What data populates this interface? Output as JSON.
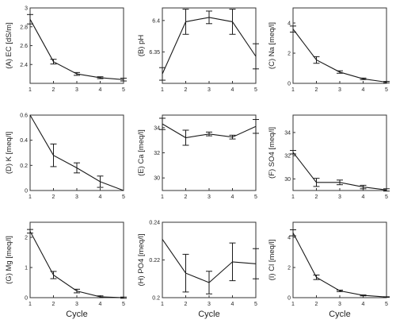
{
  "chart_data": [
    {
      "type": "line",
      "panel_letter": "(A)",
      "ylabel": "EC [dS/m]",
      "x": [
        1,
        2,
        3,
        4,
        5
      ],
      "values": [
        2.88,
        2.43,
        2.3,
        2.26,
        2.24
      ],
      "err": [
        0.05,
        0.025,
        0.015,
        0.01,
        0.015
      ],
      "ylim": [
        2.2,
        3.0
      ],
      "yticks": [
        2.4,
        2.6,
        2.8,
        3.0
      ],
      "xticks": [
        1,
        2,
        3,
        4,
        5
      ]
    },
    {
      "type": "line",
      "panel_letter": "(B)",
      "ylabel": "pH",
      "x": [
        1,
        2,
        3,
        4,
        5
      ],
      "values": [
        6.315,
        6.398,
        6.405,
        6.398,
        6.343
      ],
      "err": [
        0.01,
        0.02,
        0.01,
        0.02,
        0.02
      ],
      "ylim": [
        6.3,
        6.42
      ],
      "yticks": [
        6.35,
        6.4
      ],
      "xticks": [
        1,
        2,
        3,
        4,
        5
      ]
    },
    {
      "type": "line",
      "panel_letter": "(C)",
      "ylabel": "Na [meq/l]",
      "x": [
        1,
        2,
        3,
        4,
        5
      ],
      "values": [
        3.6,
        1.55,
        0.75,
        0.3,
        0.08
      ],
      "err": [
        0.2,
        0.22,
        0.08,
        0.05,
        0.05
      ],
      "ylim": [
        0,
        5
      ],
      "yticks": [
        0,
        2,
        4
      ],
      "xticks": [
        1,
        2,
        3,
        4,
        5
      ]
    },
    {
      "type": "line",
      "panel_letter": "(D)",
      "ylabel": "K [meq/l]",
      "x": [
        1,
        2,
        3,
        4,
        5
      ],
      "values": [
        0.6,
        0.28,
        0.18,
        0.07,
        0.0
      ],
      "err": [
        0.0,
        0.09,
        0.04,
        0.045,
        0.0
      ],
      "ylim": [
        0,
        0.6
      ],
      "yticks": [
        0,
        0.2,
        0.4,
        0.6
      ],
      "xticks": [
        1,
        2,
        3,
        4,
        5
      ]
    },
    {
      "type": "line",
      "panel_letter": "(E)",
      "ylabel": "Ca [meq/l]",
      "x": [
        1,
        2,
        3,
        4,
        5
      ],
      "values": [
        34.3,
        33.2,
        33.5,
        33.25,
        34.1
      ],
      "err": [
        0.45,
        0.6,
        0.15,
        0.15,
        0.55
      ],
      "ylim": [
        29,
        35
      ],
      "yticks": [
        30,
        32,
        34
      ],
      "xticks": [
        1,
        2,
        3,
        4,
        5
      ]
    },
    {
      "type": "line",
      "panel_letter": "(F)",
      "ylabel": "SO4 [meq/l]",
      "x": [
        1,
        2,
        3,
        4,
        5
      ],
      "values": [
        32.3,
        29.7,
        29.7,
        29.3,
        29.05
      ],
      "err": [
        0.15,
        0.35,
        0.2,
        0.15,
        0.1
      ],
      "ylim": [
        29,
        35.5
      ],
      "yticks": [
        30,
        32,
        34
      ],
      "xticks": [
        1,
        2,
        3,
        4,
        5
      ]
    },
    {
      "type": "line",
      "panel_letter": "(G)",
      "ylabel": "Mg [meq/l]",
      "x": [
        1,
        2,
        3,
        4,
        5
      ],
      "values": [
        2.2,
        0.75,
        0.22,
        0.03,
        0.0
      ],
      "err": [
        0.06,
        0.12,
        0.06,
        0.03,
        0.02
      ],
      "ylim": [
        0,
        2.5
      ],
      "yticks": [
        0,
        1,
        2
      ],
      "xticks": [
        1,
        2,
        3,
        4,
        5
      ]
    },
    {
      "type": "line",
      "panel_letter": "(H)",
      "ylabel": "PO4 [meq/l]",
      "x": [
        1,
        2,
        3,
        4,
        5
      ],
      "values": [
        0.231,
        0.213,
        0.208,
        0.219,
        0.218
      ],
      "err": [
        0.0,
        0.01,
        0.006,
        0.01,
        0.008
      ],
      "ylim": [
        0.2,
        0.24
      ],
      "yticks": [
        0.2,
        0.22,
        0.24
      ],
      "xticks": [
        1,
        2,
        3,
        4,
        5
      ]
    },
    {
      "type": "line",
      "panel_letter": "(I)",
      "ylabel": "Cl [meq/l]",
      "x": [
        1,
        2,
        3,
        4,
        5
      ],
      "values": [
        4.3,
        1.35,
        0.45,
        0.15,
        0.04
      ],
      "err": [
        0.2,
        0.15,
        0.05,
        0.03,
        0.02
      ],
      "ylim": [
        0,
        5
      ],
      "yticks": [
        0,
        2,
        4
      ],
      "xticks": [
        1,
        2,
        3,
        4,
        5
      ]
    }
  ],
  "xlabel": "Cycle"
}
